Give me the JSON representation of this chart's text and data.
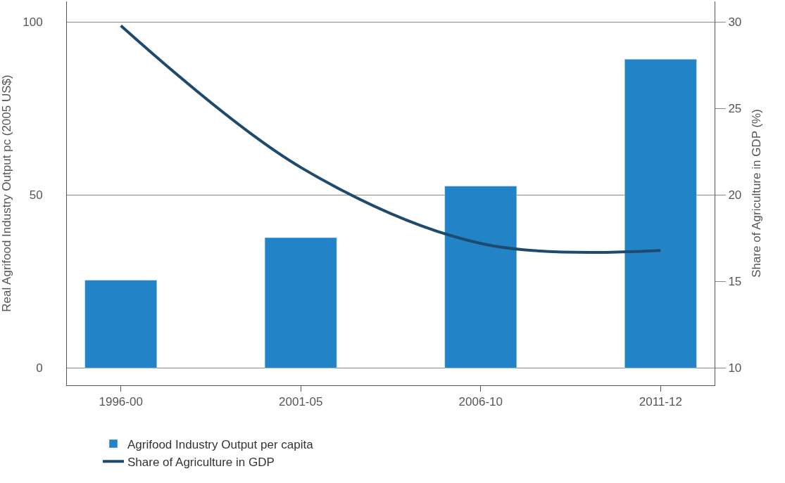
{
  "chart_data": {
    "type": "bar",
    "categories": [
      "1996-00",
      "2001-05",
      "2006-10",
      "2011-12"
    ],
    "series": [
      {
        "name": "Agrifood Industry Output per capita",
        "color": "#2383c7",
        "values": [
          25.4,
          37.7,
          52.6,
          89.3
        ]
      },
      {
        "name": "Share of Agriculture in GDP",
        "type": "line",
        "axis": "y2",
        "color": "#1d4a6e",
        "values": [
          29.8,
          21.6,
          17.2,
          16.8
        ]
      }
    ],
    "ylabel": "Real Agrifood Industry Output pc (2005 US$)",
    "y2label": "Share of Agriculture in GDP (%)",
    "ylim": [
      -5,
      106
    ],
    "yticks": [
      0,
      50,
      100
    ],
    "y2lim": [
      9,
      31.2
    ],
    "y2ticks": [
      10,
      15,
      20,
      25,
      30
    ],
    "grid": "y",
    "legend": "bottom left",
    "marker": "none",
    "line_style": "solid"
  }
}
